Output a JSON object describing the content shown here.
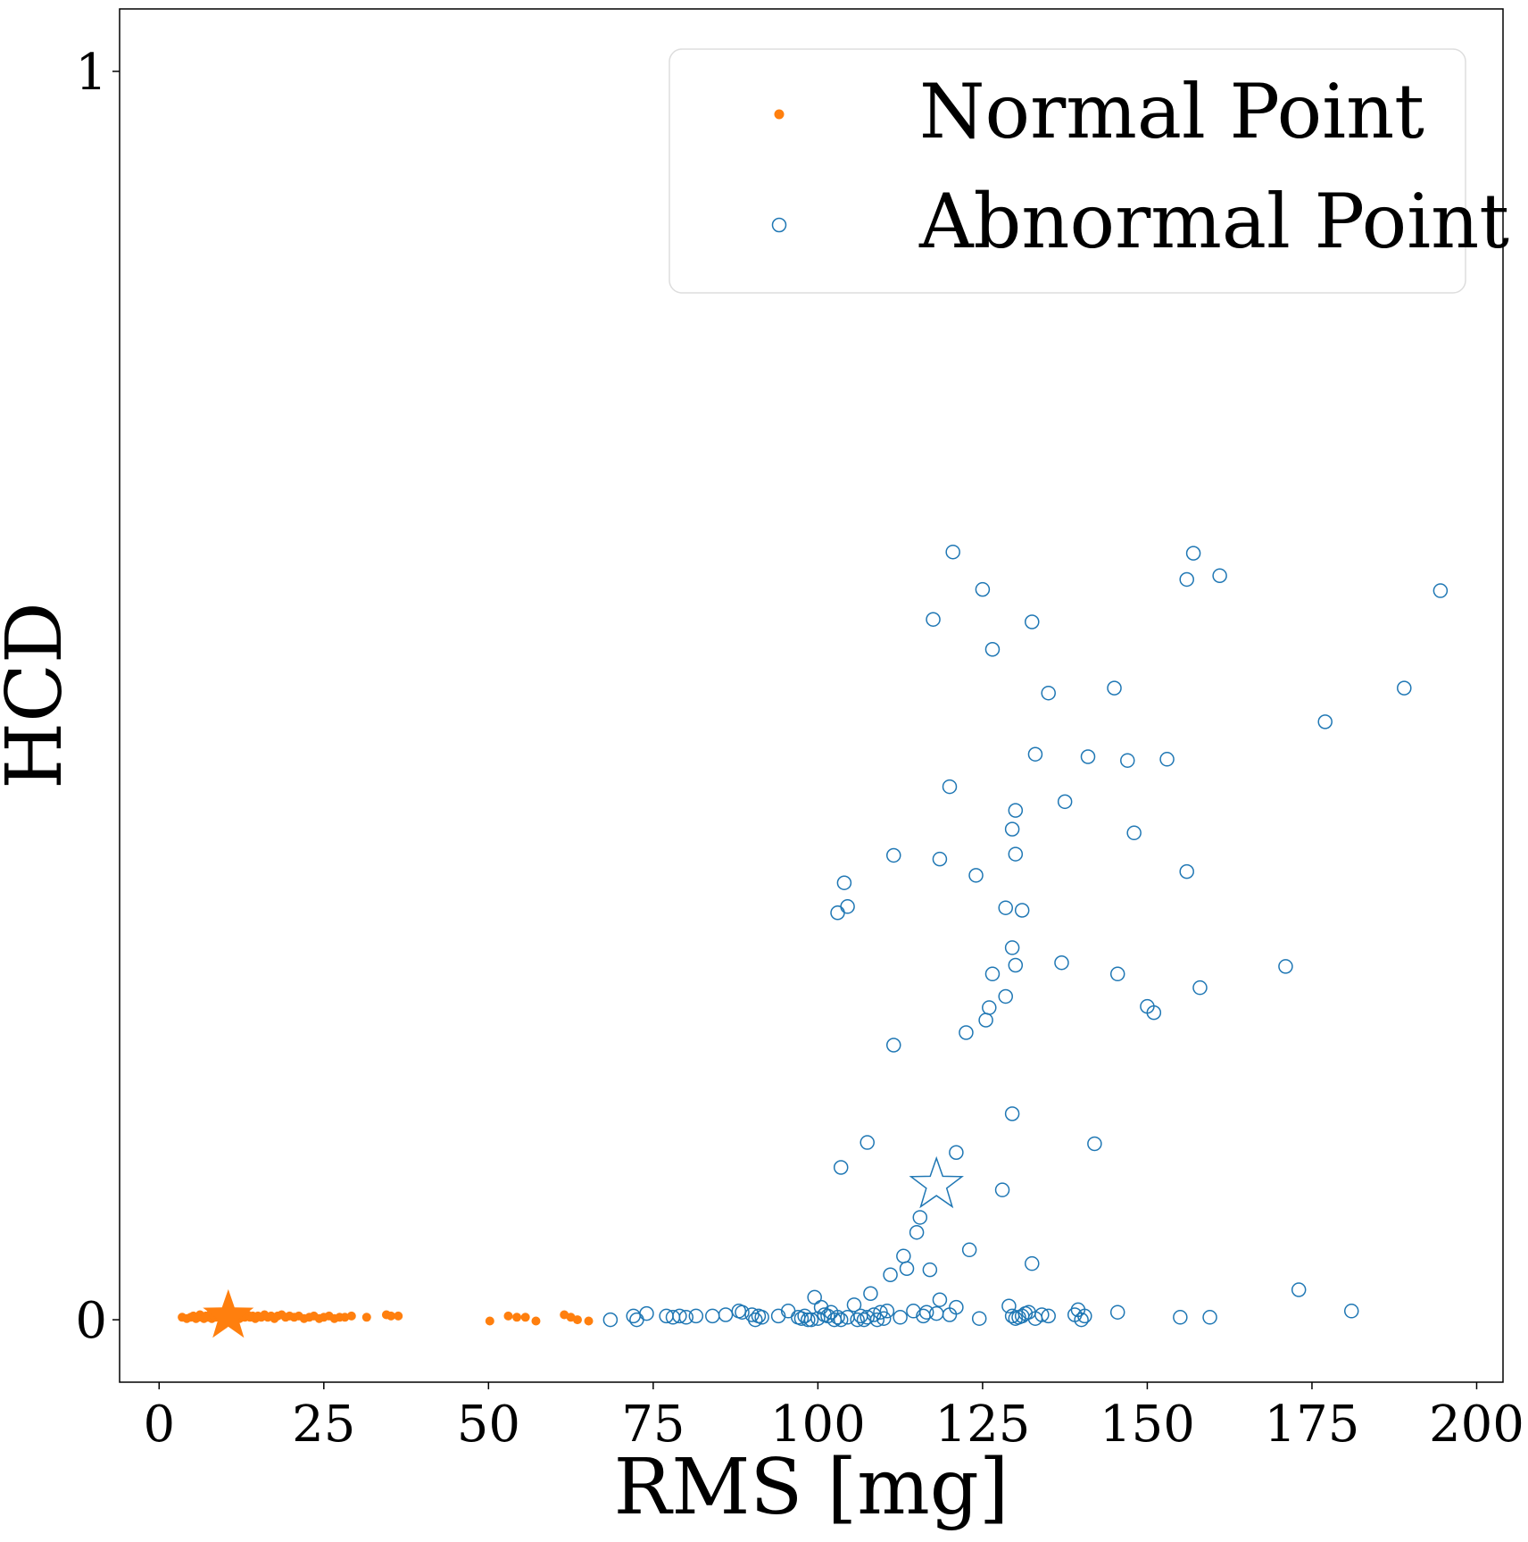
{
  "chart_data": {
    "type": "scatter",
    "xlabel": "RMS [mg]",
    "ylabel": "HCD",
    "xlim": [
      -6,
      204
    ],
    "ylim": [
      -0.05,
      1.05
    ],
    "xticks": [
      0,
      25,
      50,
      75,
      100,
      125,
      150,
      175,
      200
    ],
    "yticks": [
      0,
      1
    ],
    "grid": false,
    "legend": {
      "placement": "top-right"
    },
    "series": [
      {
        "name": "Normal Point",
        "color": "#ff7f0e",
        "marker": "filled-dot",
        "centroid": {
          "x": 10.5,
          "y": 0.003,
          "marker": "star"
        },
        "points": [
          [
            3.5,
            0.002
          ],
          [
            4.2,
            0.001
          ],
          [
            4.8,
            0.002
          ],
          [
            5.2,
            0.003
          ],
          [
            5.6,
            0.001
          ],
          [
            5.9,
            0.002
          ],
          [
            6.2,
            0.004
          ],
          [
            6.5,
            0.002
          ],
          [
            6.8,
            0.001
          ],
          [
            7.1,
            0.003
          ],
          [
            7.4,
            0.002
          ],
          [
            7.7,
            0.004
          ],
          [
            8.0,
            0.001
          ],
          [
            8.3,
            0.003
          ],
          [
            8.6,
            0.002
          ],
          [
            8.9,
            0.004
          ],
          [
            9.2,
            0.002
          ],
          [
            9.5,
            0.003
          ],
          [
            9.8,
            0.001
          ],
          [
            10.2,
            0.004
          ],
          [
            10.6,
            0.002
          ],
          [
            11.0,
            0.003
          ],
          [
            11.4,
            0.002
          ],
          [
            11.8,
            0.004
          ],
          [
            12.2,
            0.001
          ],
          [
            12.6,
            0.003
          ],
          [
            13.0,
            0.002
          ],
          [
            13.4,
            0.004
          ],
          [
            13.8,
            0.002
          ],
          [
            14.2,
            0.003
          ],
          [
            14.6,
            0.001
          ],
          [
            15.0,
            0.003
          ],
          [
            15.5,
            0.002
          ],
          [
            16.0,
            0.004
          ],
          [
            16.5,
            0.002
          ],
          [
            17.0,
            0.003
          ],
          [
            17.5,
            0.001
          ],
          [
            18.0,
            0.003
          ],
          [
            18.6,
            0.004
          ],
          [
            19.2,
            0.002
          ],
          [
            19.8,
            0.003
          ],
          [
            20.5,
            0.002
          ],
          [
            21.2,
            0.003
          ],
          [
            22.0,
            0.001
          ],
          [
            22.8,
            0.002
          ],
          [
            23.5,
            0.003
          ],
          [
            24.3,
            0.001
          ],
          [
            25.0,
            0.002
          ],
          [
            25.8,
            0.003
          ],
          [
            26.6,
            0.001
          ],
          [
            27.4,
            0.002
          ],
          [
            28.2,
            0.002
          ],
          [
            29.2,
            0.003
          ],
          [
            31.5,
            0.002
          ],
          [
            34.5,
            0.004
          ],
          [
            35.2,
            0.003
          ],
          [
            36.3,
            0.003
          ],
          [
            50.2,
            -0.001
          ],
          [
            53.0,
            0.003
          ],
          [
            54.3,
            0.002
          ],
          [
            55.6,
            0.002
          ],
          [
            57.2,
            -0.001
          ],
          [
            61.5,
            0.004
          ],
          [
            62.5,
            0.002
          ],
          [
            63.5,
            0.0
          ],
          [
            65.2,
            -0.001
          ]
        ]
      },
      {
        "name": "Abnormal Point",
        "color": "#1f77b4",
        "marker": "hollow-circle",
        "centroid": {
          "x": 118,
          "y": 0.108,
          "marker": "star"
        },
        "points": [
          [
            68.5,
            0.0
          ],
          [
            72,
            0.003
          ],
          [
            72.5,
            0.0
          ],
          [
            74,
            0.005
          ],
          [
            77,
            0.003
          ],
          [
            78,
            0.002
          ],
          [
            79,
            0.003
          ],
          [
            80,
            0.002
          ],
          [
            81.5,
            0.003
          ],
          [
            84,
            0.003
          ],
          [
            86,
            0.004
          ],
          [
            88,
            0.007
          ],
          [
            88.5,
            0.006
          ],
          [
            90,
            0.004
          ],
          [
            90.5,
            0.0
          ],
          [
            91,
            0.003
          ],
          [
            91.5,
            0.002
          ],
          [
            94,
            0.003
          ],
          [
            95.5,
            0.007
          ],
          [
            97,
            0.002
          ],
          [
            97.5,
            0.001
          ],
          [
            98,
            0.003
          ],
          [
            98.5,
            0.0
          ],
          [
            99,
            0.0
          ],
          [
            99.5,
            0.018
          ],
          [
            100,
            0.001
          ],
          [
            100.5,
            0.01
          ],
          [
            101,
            0.004
          ],
          [
            101.5,
            0.003
          ],
          [
            102,
            0.006
          ],
          [
            102.5,
            0.0
          ],
          [
            103,
            0.002
          ],
          [
            103.5,
            0.0
          ],
          [
            104.5,
            0.002
          ],
          [
            105.5,
            0.012
          ],
          [
            106,
            0.0
          ],
          [
            106.5,
            0.003
          ],
          [
            107,
            0.0
          ],
          [
            107.5,
            0.002
          ],
          [
            108,
            0.021
          ],
          [
            108.5,
            0.004
          ],
          [
            109,
            0.0
          ],
          [
            109.5,
            0.006
          ],
          [
            110,
            0.001
          ],
          [
            110.5,
            0.007
          ],
          [
            111,
            0.036
          ],
          [
            112.5,
            0.002
          ],
          [
            113,
            0.051
          ],
          [
            113.5,
            0.041
          ],
          [
            114.5,
            0.007
          ],
          [
            115,
            0.07
          ],
          [
            115.5,
            0.082
          ],
          [
            116,
            0.003
          ],
          [
            116.5,
            0.006
          ],
          [
            117,
            0.04
          ],
          [
            118,
            0.005
          ],
          [
            118.5,
            0.016
          ],
          [
            120,
            0.004
          ],
          [
            121,
            0.01
          ],
          [
            123,
            0.056
          ],
          [
            124.5,
            0.001
          ],
          [
            128,
            0.104
          ],
          [
            129,
            0.011
          ],
          [
            129.5,
            0.003
          ],
          [
            130,
            0.001
          ],
          [
            130.5,
            0.002
          ],
          [
            131,
            0.003
          ],
          [
            131.5,
            0.005
          ],
          [
            132,
            0.006
          ],
          [
            132.5,
            0.045
          ],
          [
            133,
            0.001
          ],
          [
            134,
            0.004
          ],
          [
            135,
            0.003
          ],
          [
            139,
            0.004
          ],
          [
            139.5,
            0.008
          ],
          [
            140,
            0.0
          ],
          [
            140.5,
            0.003
          ],
          [
            145.5,
            0.006
          ],
          [
            155,
            0.002
          ],
          [
            159.5,
            0.002
          ],
          [
            173,
            0.024
          ],
          [
            181,
            0.007
          ],
          [
            103.5,
            0.122
          ],
          [
            107.5,
            0.142
          ],
          [
            121,
            0.134
          ],
          [
            142,
            0.141
          ],
          [
            111.5,
            0.22
          ],
          [
            122.5,
            0.23
          ],
          [
            125.5,
            0.24
          ],
          [
            126,
            0.25
          ],
          [
            129.5,
            0.165
          ],
          [
            128.5,
            0.259
          ],
          [
            126.5,
            0.277
          ],
          [
            130,
            0.284
          ],
          [
            137,
            0.286
          ],
          [
            145.5,
            0.277
          ],
          [
            150,
            0.251
          ],
          [
            151,
            0.246
          ],
          [
            158,
            0.266
          ],
          [
            171,
            0.283
          ],
          [
            129.5,
            0.298
          ],
          [
            103,
            0.326
          ],
          [
            104.5,
            0.331
          ],
          [
            128.5,
            0.33
          ],
          [
            131,
            0.328
          ],
          [
            111.5,
            0.372
          ],
          [
            118.5,
            0.369
          ],
          [
            124,
            0.356
          ],
          [
            104,
            0.35
          ],
          [
            130,
            0.373
          ],
          [
            156,
            0.359
          ],
          [
            129.5,
            0.393
          ],
          [
            130,
            0.408
          ],
          [
            120,
            0.427
          ],
          [
            137.5,
            0.415
          ],
          [
            148,
            0.39
          ],
          [
            133,
            0.453
          ],
          [
            141,
            0.451
          ],
          [
            147,
            0.448
          ],
          [
            153,
            0.449
          ],
          [
            177,
            0.479
          ],
          [
            135,
            0.502
          ],
          [
            145,
            0.506
          ],
          [
            189,
            0.506
          ],
          [
            117.5,
            0.561
          ],
          [
            132.5,
            0.559
          ],
          [
            126.5,
            0.537
          ],
          [
            125,
            0.585
          ],
          [
            120.5,
            0.615
          ],
          [
            156,
            0.593
          ],
          [
            157,
            0.614
          ],
          [
            161,
            0.596
          ],
          [
            194.5,
            0.584
          ]
        ]
      }
    ]
  }
}
